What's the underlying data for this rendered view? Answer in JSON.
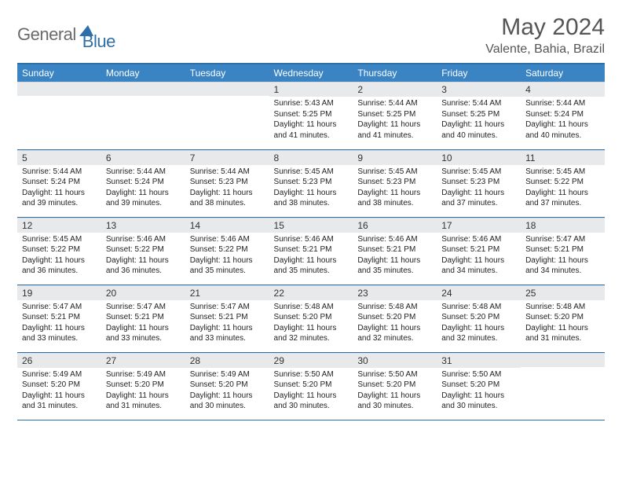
{
  "logo": {
    "text1": "General",
    "text2": "Blue",
    "tri_color": "#2f6fa8"
  },
  "title": {
    "month": "May 2024",
    "location": "Valente, Bahia, Brazil"
  },
  "colors": {
    "header_bg": "#3b84c4",
    "header_text": "#ffffff",
    "border": "#2f6fa8",
    "daynum_bg": "#e7e9eb",
    "body_text": "#222222",
    "title_text": "#555555"
  },
  "weekdays": [
    "Sunday",
    "Monday",
    "Tuesday",
    "Wednesday",
    "Thursday",
    "Friday",
    "Saturday"
  ],
  "first_weekday": 3,
  "days": [
    {
      "n": 1,
      "sunrise": "5:43 AM",
      "sunset": "5:25 PM",
      "dl": "11 hours and 41 minutes."
    },
    {
      "n": 2,
      "sunrise": "5:44 AM",
      "sunset": "5:25 PM",
      "dl": "11 hours and 41 minutes."
    },
    {
      "n": 3,
      "sunrise": "5:44 AM",
      "sunset": "5:25 PM",
      "dl": "11 hours and 40 minutes."
    },
    {
      "n": 4,
      "sunrise": "5:44 AM",
      "sunset": "5:24 PM",
      "dl": "11 hours and 40 minutes."
    },
    {
      "n": 5,
      "sunrise": "5:44 AM",
      "sunset": "5:24 PM",
      "dl": "11 hours and 39 minutes."
    },
    {
      "n": 6,
      "sunrise": "5:44 AM",
      "sunset": "5:24 PM",
      "dl": "11 hours and 39 minutes."
    },
    {
      "n": 7,
      "sunrise": "5:44 AM",
      "sunset": "5:23 PM",
      "dl": "11 hours and 38 minutes."
    },
    {
      "n": 8,
      "sunrise": "5:45 AM",
      "sunset": "5:23 PM",
      "dl": "11 hours and 38 minutes."
    },
    {
      "n": 9,
      "sunrise": "5:45 AM",
      "sunset": "5:23 PM",
      "dl": "11 hours and 38 minutes."
    },
    {
      "n": 10,
      "sunrise": "5:45 AM",
      "sunset": "5:23 PM",
      "dl": "11 hours and 37 minutes."
    },
    {
      "n": 11,
      "sunrise": "5:45 AM",
      "sunset": "5:22 PM",
      "dl": "11 hours and 37 minutes."
    },
    {
      "n": 12,
      "sunrise": "5:45 AM",
      "sunset": "5:22 PM",
      "dl": "11 hours and 36 minutes."
    },
    {
      "n": 13,
      "sunrise": "5:46 AM",
      "sunset": "5:22 PM",
      "dl": "11 hours and 36 minutes."
    },
    {
      "n": 14,
      "sunrise": "5:46 AM",
      "sunset": "5:22 PM",
      "dl": "11 hours and 35 minutes."
    },
    {
      "n": 15,
      "sunrise": "5:46 AM",
      "sunset": "5:21 PM",
      "dl": "11 hours and 35 minutes."
    },
    {
      "n": 16,
      "sunrise": "5:46 AM",
      "sunset": "5:21 PM",
      "dl": "11 hours and 35 minutes."
    },
    {
      "n": 17,
      "sunrise": "5:46 AM",
      "sunset": "5:21 PM",
      "dl": "11 hours and 34 minutes."
    },
    {
      "n": 18,
      "sunrise": "5:47 AM",
      "sunset": "5:21 PM",
      "dl": "11 hours and 34 minutes."
    },
    {
      "n": 19,
      "sunrise": "5:47 AM",
      "sunset": "5:21 PM",
      "dl": "11 hours and 33 minutes."
    },
    {
      "n": 20,
      "sunrise": "5:47 AM",
      "sunset": "5:21 PM",
      "dl": "11 hours and 33 minutes."
    },
    {
      "n": 21,
      "sunrise": "5:47 AM",
      "sunset": "5:21 PM",
      "dl": "11 hours and 33 minutes."
    },
    {
      "n": 22,
      "sunrise": "5:48 AM",
      "sunset": "5:20 PM",
      "dl": "11 hours and 32 minutes."
    },
    {
      "n": 23,
      "sunrise": "5:48 AM",
      "sunset": "5:20 PM",
      "dl": "11 hours and 32 minutes."
    },
    {
      "n": 24,
      "sunrise": "5:48 AM",
      "sunset": "5:20 PM",
      "dl": "11 hours and 32 minutes."
    },
    {
      "n": 25,
      "sunrise": "5:48 AM",
      "sunset": "5:20 PM",
      "dl": "11 hours and 31 minutes."
    },
    {
      "n": 26,
      "sunrise": "5:49 AM",
      "sunset": "5:20 PM",
      "dl": "11 hours and 31 minutes."
    },
    {
      "n": 27,
      "sunrise": "5:49 AM",
      "sunset": "5:20 PM",
      "dl": "11 hours and 31 minutes."
    },
    {
      "n": 28,
      "sunrise": "5:49 AM",
      "sunset": "5:20 PM",
      "dl": "11 hours and 30 minutes."
    },
    {
      "n": 29,
      "sunrise": "5:50 AM",
      "sunset": "5:20 PM",
      "dl": "11 hours and 30 minutes."
    },
    {
      "n": 30,
      "sunrise": "5:50 AM",
      "sunset": "5:20 PM",
      "dl": "11 hours and 30 minutes."
    },
    {
      "n": 31,
      "sunrise": "5:50 AM",
      "sunset": "5:20 PM",
      "dl": "11 hours and 30 minutes."
    }
  ],
  "labels": {
    "sunrise": "Sunrise:",
    "sunset": "Sunset:",
    "daylight": "Daylight:"
  }
}
